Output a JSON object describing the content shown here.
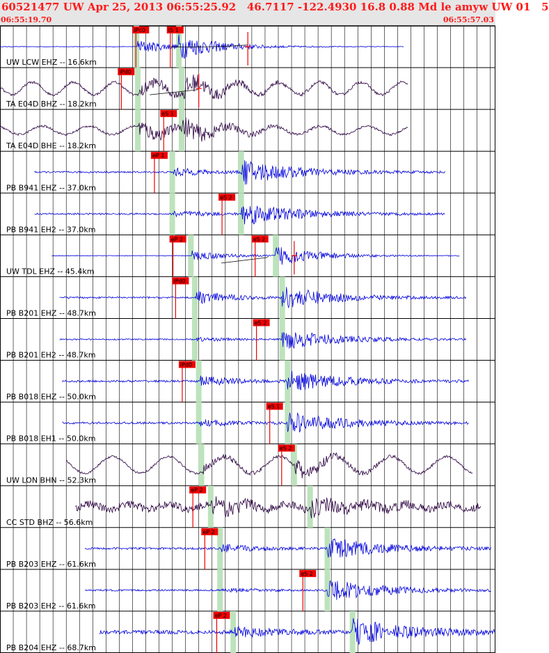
{
  "header": {
    "title": "60521477 UW Apr 25, 2013 06:55:25.92   46.7117 -122.4930 16.8 0.88 Md le amyw UW 01   5",
    "start_time": "06:55:19.70",
    "end_time": "06:55:57.03"
  },
  "colors": {
    "bg": "#ffffff",
    "header_bg": "#e6e6e6",
    "header_text": "#ff1a1a",
    "velocity_trace": "#0000dd",
    "broadband_trace": "#2a0040",
    "pick": "#ee0000",
    "window": "#bde3bd"
  },
  "chart_data": {
    "type": "line",
    "x_unit": "seconds from 06:55:19.70",
    "xlim": [
      0,
      37.33
    ],
    "grid": true,
    "traces": [
      {
        "label": "UW LCW EHZ -- 16.6km",
        "kind": "vel",
        "start": 0.0,
        "end": 30.5,
        "p": 10.3,
        "s": 13.4,
        "noise": 0.012,
        "ampP": 0.35,
        "ampS": 0.55,
        "coda": 3,
        "lp": 0,
        "picks": [
          {
            "t": 10.2,
            "label": "iPc0"
          },
          {
            "t": 12.8,
            "label": "iS 1"
          }
        ],
        "windows": [
          10.3,
          13.5
        ],
        "marks": [
          18.7
        ],
        "curve": [
          [
            12.8,
            0
          ],
          [
            18.7,
            0.08
          ]
        ]
      },
      {
        "label": "TA E04D BHZ -- 18.2km",
        "kind": "bb",
        "start": 0.0,
        "end": 30.8,
        "p": 10.5,
        "s": 13.6,
        "noise": 0.06,
        "ampP": 0.3,
        "ampS": 0.45,
        "coda": 3,
        "lp": 0.3,
        "lpPeriod": 3.1,
        "picks": [
          {
            "t": 9.1,
            "label": "iPd0"
          }
        ],
        "windows": [
          10.4,
          13.7
        ],
        "marks": [
          15.0
        ],
        "curve": [
          [
            11.3,
            -0.3
          ],
          [
            15.0,
            -0.05
          ]
        ]
      },
      {
        "label": "TA E04D BHE -- 18.2km",
        "kind": "bb",
        "start": 0.0,
        "end": 30.8,
        "p": 10.5,
        "s": 13.7,
        "noise": 0.05,
        "ampP": 0.45,
        "ampS": 0.4,
        "coda": 3,
        "lp": 0.2,
        "lpPeriod": 3.5,
        "picks": [
          {
            "t": 12.3,
            "label": "eS 1"
          }
        ],
        "windows": [
          10.4,
          13.7
        ],
        "marks": [],
        "curve": []
      },
      {
        "label": "PB B941 EHZ -- 37.0km",
        "kind": "vel",
        "start": 2.6,
        "end": 33.6,
        "p": 13.1,
        "s": 18.2,
        "noise": 0.04,
        "ampP": 0.2,
        "ampS": 0.6,
        "coda": 4,
        "lp": 0,
        "picks": [
          {
            "t": 11.6,
            "label": "eP 1"
          }
        ],
        "windows": [
          13.0,
          18.2
        ],
        "marks": [],
        "curve": []
      },
      {
        "label": "PB B941 EH2 -- 37.0km",
        "kind": "vel",
        "start": 2.6,
        "end": 33.6,
        "p": 13.1,
        "s": 18.2,
        "noise": 0.04,
        "ampP": 0.15,
        "ampS": 0.55,
        "coda": 4,
        "lp": 0,
        "picks": [
          {
            "t": 16.7,
            "label": "eS 2"
          }
        ],
        "windows": [
          13.0,
          18.2
        ],
        "marks": [],
        "curve": []
      },
      {
        "label": "UW TDL EHZ -- 45.4km",
        "kind": "vel",
        "start": 3.9,
        "end": 34.7,
        "p": 14.5,
        "s": 20.8,
        "noise": 0.015,
        "ampP": 0.25,
        "ampS": 0.5,
        "coda": 3,
        "lp": 0,
        "picks": [
          {
            "t": 13.0,
            "label": "eP 2"
          },
          {
            "t": 19.2,
            "label": "eS 2"
          }
        ],
        "windows": [
          14.4,
          20.8
        ],
        "marks": [
          22.2
        ],
        "curve": [
          [
            16.7,
            -0.35
          ],
          [
            20.2,
            -0.08
          ]
        ]
      },
      {
        "label": "PB B201 EHZ -- 48.7km",
        "kind": "vel",
        "start": 4.5,
        "end": 35.2,
        "p": 14.8,
        "s": 21.3,
        "noise": 0.04,
        "ampP": 0.3,
        "ampS": 0.5,
        "coda": 4,
        "lp": 0,
        "picks": [
          {
            "t": 13.2,
            "label": "iPd0"
          }
        ],
        "windows": [
          14.7,
          21.3
        ],
        "marks": [],
        "curve": []
      },
      {
        "label": "PB B201 EH2 -- 48.7km",
        "kind": "vel",
        "start": 4.5,
        "end": 35.2,
        "p": 14.8,
        "s": 21.3,
        "noise": 0.03,
        "ampP": 0.1,
        "ampS": 0.5,
        "coda": 4,
        "lp": 0,
        "picks": [
          {
            "t": 19.3,
            "label": "eS 2"
          }
        ],
        "windows": [
          14.7,
          21.3
        ],
        "marks": [],
        "curve": []
      },
      {
        "label": "PB B018 EHZ -- 50.0km",
        "kind": "vel",
        "start": 4.7,
        "end": 35.4,
        "p": 15.1,
        "s": 21.7,
        "noise": 0.05,
        "ampP": 0.25,
        "ampS": 0.5,
        "coda": 4,
        "lp": 0,
        "picks": [
          {
            "t": 13.7,
            "label": "iPd0"
          }
        ],
        "windows": [
          15.0,
          21.7
        ],
        "marks": [],
        "curve": []
      },
      {
        "label": "PB B018 EH1 -- 50.0km",
        "kind": "vel",
        "start": 4.7,
        "end": 35.4,
        "p": 15.1,
        "s": 21.7,
        "noise": 0.05,
        "ampP": 0.15,
        "ampS": 0.5,
        "coda": 4,
        "lp": 0,
        "picks": [
          {
            "t": 20.3,
            "label": "eS 1"
          }
        ],
        "windows": [
          15.0,
          21.7
        ],
        "marks": [],
        "curve": []
      },
      {
        "label": "UW LON BHN -- 52.3km",
        "kind": "bb",
        "start": 5.0,
        "end": 35.7,
        "p": 15.3,
        "s": 22.2,
        "noise": 0.05,
        "ampP": 0.2,
        "ampS": 0.4,
        "coda": 3,
        "lp": 0.4,
        "lpPeriod": 4.2,
        "picks": [
          {
            "t": 21.2,
            "label": "eS 2"
          }
        ],
        "windows": [
          15.2,
          22.2
        ],
        "marks": [],
        "curve": []
      },
      {
        "label": "CC STD BHZ -- 56.6km",
        "kind": "bb",
        "start": 5.7,
        "end": 36.3,
        "p": 16.0,
        "s": 23.4,
        "noise": 0.18,
        "ampP": 0.3,
        "ampS": 0.3,
        "coda": 3,
        "lp": 0.12,
        "lpPeriod": 3.0,
        "picks": [
          {
            "t": 14.5,
            "label": "eP 2"
          }
        ],
        "windows": [
          15.9,
          23.4
        ],
        "marks": [],
        "curve": []
      },
      {
        "label": "PB B203 EHZ -- 61.6km",
        "kind": "vel",
        "start": 6.4,
        "end": 37.1,
        "p": 16.7,
        "s": 24.7,
        "noise": 0.05,
        "ampP": 0.2,
        "ampS": 0.55,
        "coda": 4,
        "lp": 0,
        "picks": [
          {
            "t": 15.4,
            "label": "eP 2"
          }
        ],
        "windows": [
          16.6,
          24.7
        ],
        "marks": [],
        "curve": []
      },
      {
        "label": "PB B203 EH2 -- 61.6km",
        "kind": "vel",
        "start": 6.4,
        "end": 37.1,
        "p": 16.7,
        "s": 24.7,
        "noise": 0.04,
        "ampP": 0.1,
        "ampS": 0.55,
        "coda": 4,
        "lp": 0,
        "picks": [
          {
            "t": 22.8,
            "label": "eS 2"
          }
        ],
        "windows": [
          16.6,
          24.7
        ],
        "marks": [],
        "curve": []
      },
      {
        "label": "PB B204 EHZ -- 68.7km",
        "kind": "vel",
        "start": 7.5,
        "end": 37.33,
        "p": 17.7,
        "s": 26.6,
        "noise": 0.09,
        "ampP": 0.3,
        "ampS": 0.6,
        "coda": 4,
        "lp": 0,
        "picks": [
          {
            "t": 16.3,
            "label": "eP 2"
          }
        ],
        "windows": [
          17.6,
          26.6
        ],
        "marks": [],
        "curve": []
      }
    ]
  }
}
